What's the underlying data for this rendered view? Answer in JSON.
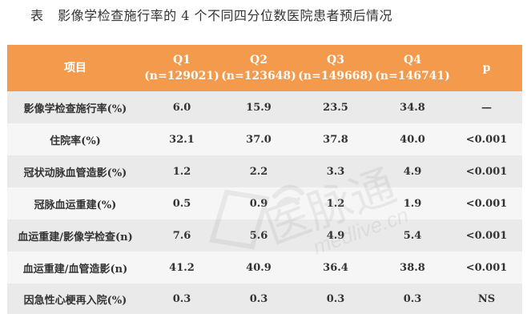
{
  "caption": {
    "label": "表",
    "title": "影像学检查施行率的 4 个不同四分位数医院患者预后情况"
  },
  "header": {
    "item": "项目",
    "quartiles": [
      {
        "name": "Q1",
        "n": "(n=129021)"
      },
      {
        "name": "Q2",
        "n": "(n=123648)"
      },
      {
        "name": "Q3",
        "n": "(n=149668)"
      },
      {
        "name": "Q4",
        "n": "(n=146741)"
      }
    ],
    "p": "p"
  },
  "rows": [
    {
      "item": "影像学检查施行率(%)",
      "values": [
        "6.0",
        "15.9",
        "23.5",
        "34.8"
      ],
      "p": "—"
    },
    {
      "item": "住院率(%)",
      "values": [
        "32.1",
        "37.0",
        "37.8",
        "40.0"
      ],
      "p": "<0.001"
    },
    {
      "item": "冠状动脉血管造影(%)",
      "values": [
        "1.2",
        "2.2",
        "3.3",
        "4.9"
      ],
      "p": "<0.001"
    },
    {
      "item": "冠脉血运重建(%)",
      "values": [
        "0.5",
        "0.9",
        "1.2",
        "1.9"
      ],
      "p": "<0.001"
    },
    {
      "item": "血运重建/影像学检查(n)",
      "values": [
        "7.6",
        "5.6",
        "4.9",
        "5.4"
      ],
      "p": "<0.001"
    },
    {
      "item": "血运重建/血管造影(n)",
      "values": [
        "41.2",
        "40.9",
        "36.4",
        "38.8"
      ],
      "p": "<0.001"
    },
    {
      "item": "因急性心梗再入院(%)",
      "values": [
        "0.3",
        "0.3",
        "0.3",
        "0.3"
      ],
      "p": "NS"
    }
  ],
  "watermark": {
    "text": "医脉通",
    "domain": "medlive.cn"
  },
  "colors": {
    "header_bg": "#f39a4d",
    "row_odd": "#eaeaea",
    "row_even": "#f6f6f6"
  }
}
